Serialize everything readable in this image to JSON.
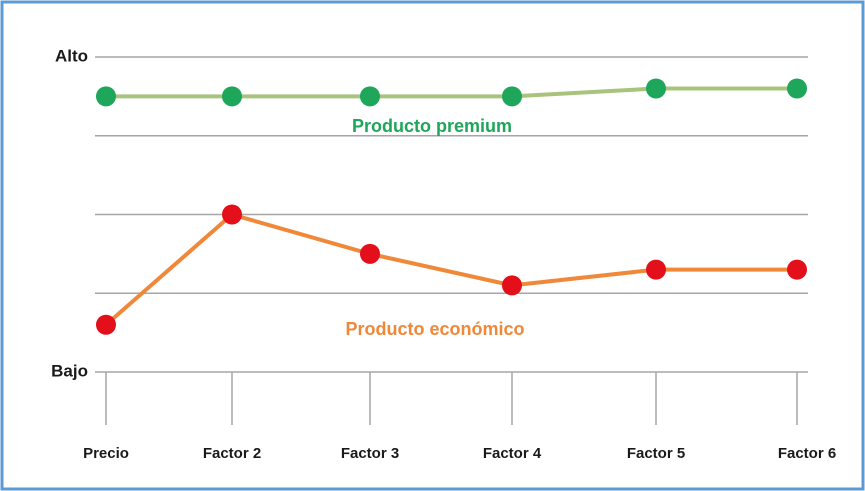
{
  "chart_data": {
    "type": "line",
    "categories": [
      "Precio",
      "Factor 2",
      "Factor 3",
      "Factor 4",
      "Factor 5",
      "Factor 6"
    ],
    "series": [
      {
        "name": "Producto premium",
        "color": "#a8c47c",
        "marker_color": "#1ea65a",
        "label_color": "#1ea65a",
        "values": [
          3.5,
          3.5,
          3.5,
          3.5,
          3.6,
          3.6
        ]
      },
      {
        "name": "Producto económico",
        "color": "#f0883a",
        "marker_color": "#e3101b",
        "label_color": "#f0883a",
        "values": [
          0.6,
          2.0,
          1.5,
          1.1,
          1.3,
          1.3
        ]
      }
    ],
    "ylim": [
      0,
      4
    ],
    "yticks": [
      {
        "value": 0,
        "label": "Bajo"
      },
      {
        "value": 1,
        "label": null
      },
      {
        "value": 2,
        "label": null
      },
      {
        "value": 3,
        "label": null
      },
      {
        "value": 4,
        "label": "Alto"
      }
    ],
    "grid": true
  }
}
